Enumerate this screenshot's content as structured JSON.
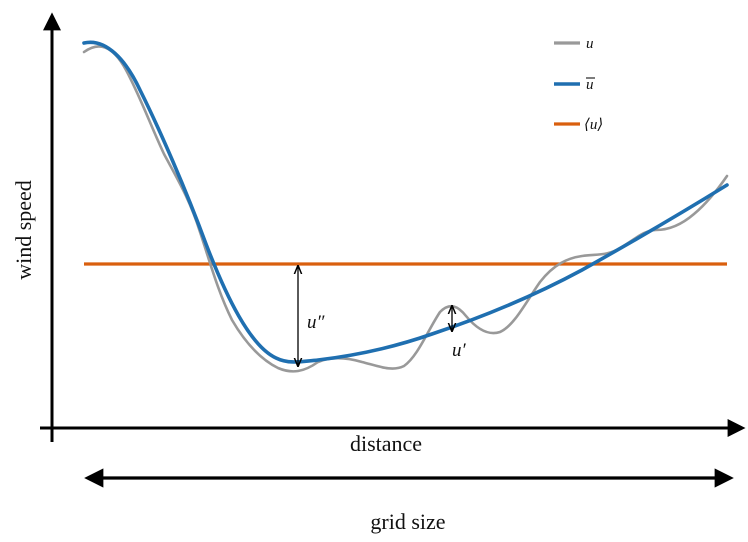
{
  "axes": {
    "x_label": "distance",
    "y_label": "wind speed"
  },
  "legend": [
    {
      "label": "u",
      "color": "#999999",
      "overline": false
    },
    {
      "label": "u",
      "color": "#1f6fb0",
      "overline": true
    },
    {
      "label": "⟨u⟩",
      "color": "#d95f0e",
      "overline": false
    }
  ],
  "annotations": {
    "u_double_prime": "u″",
    "u_prime": "u′"
  },
  "grid_size_label": "grid size",
  "colors": {
    "raw": "#999999",
    "filtered": "#1f6fb0",
    "mean": "#d95f0e",
    "axis": "#000000"
  }
}
